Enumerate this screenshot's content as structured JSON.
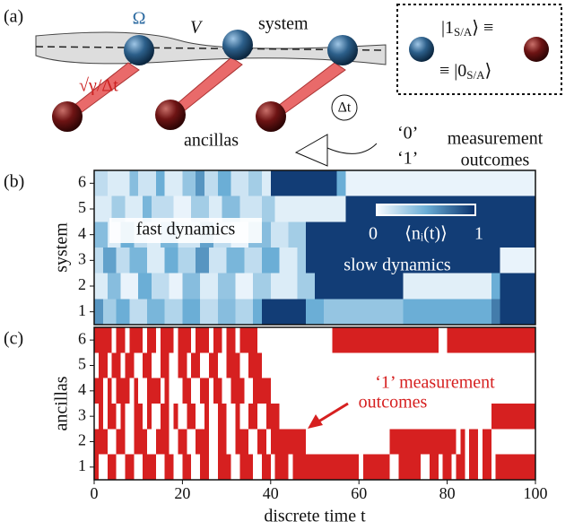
{
  "panel_a": {
    "label": "(a)",
    "omega": "Ω",
    "coupling": "V",
    "system": "system",
    "ancillas": "ancillas",
    "rate": "√γ/Δt",
    "dt": "Δt",
    "outcome_zero": "‘0’",
    "outcome_one": "‘1’",
    "measurement": "measurement",
    "outcomes": "outcomes",
    "ket_one": [
      "|1",
      "S/A",
      "⟩ ≡"
    ],
    "ket_zero": [
      "≡ |0",
      "S/A",
      "⟩"
    ]
  },
  "chart_data": [
    {
      "type": "heatmap",
      "panel_label": "(b)",
      "ylabel": "system",
      "xlim": [
        0,
        100
      ],
      "ylim": [
        0.5,
        6.5
      ],
      "yticks": [
        1,
        2,
        3,
        4,
        5,
        6
      ],
      "colormap": [
        "#f7fbff",
        "#6baed6",
        "#08306b"
      ],
      "colorbar": {
        "label": "⟨nᵢ(t)⟩",
        "ticks": [
          0,
          1
        ]
      },
      "annotations": [
        "fast dynamics",
        "slow dynamics"
      ],
      "rows": [
        [
          [
            0,
            2,
            0.6
          ],
          [
            2,
            5,
            0.3
          ],
          [
            5,
            8,
            0.5
          ],
          [
            8,
            12,
            0.2
          ],
          [
            12,
            16,
            0.45
          ],
          [
            16,
            20,
            0.25
          ],
          [
            20,
            24,
            0.5
          ],
          [
            24,
            28,
            0.2
          ],
          [
            28,
            32,
            0.4
          ],
          [
            32,
            36,
            0.25
          ],
          [
            36,
            38,
            0.5
          ],
          [
            38,
            48,
            0.95
          ],
          [
            48,
            52,
            0.5
          ],
          [
            52,
            70,
            0.35
          ],
          [
            70,
            90,
            0.5
          ],
          [
            90,
            92,
            0.7
          ],
          [
            92,
            100,
            0.95
          ]
        ],
        [
          [
            0,
            3,
            0.1
          ],
          [
            3,
            6,
            0.4
          ],
          [
            6,
            10,
            0.05
          ],
          [
            10,
            13,
            0.5
          ],
          [
            13,
            17,
            0.2
          ],
          [
            17,
            20,
            0.05
          ],
          [
            20,
            24,
            0.4
          ],
          [
            24,
            28,
            0.1
          ],
          [
            28,
            32,
            0.35
          ],
          [
            32,
            36,
            0.05
          ],
          [
            36,
            40,
            0.3
          ],
          [
            40,
            46,
            0.1
          ],
          [
            46,
            50,
            0.3
          ],
          [
            50,
            70,
            0.95
          ],
          [
            70,
            90,
            0.08
          ],
          [
            90,
            92,
            0.5
          ],
          [
            92,
            100,
            0.95
          ]
        ],
        [
          [
            0,
            2,
            0.2
          ],
          [
            2,
            5,
            0.55
          ],
          [
            5,
            8,
            0.2
          ],
          [
            8,
            12,
            0.45
          ],
          [
            12,
            16,
            0.1
          ],
          [
            16,
            19,
            0.5
          ],
          [
            19,
            23,
            0.25
          ],
          [
            23,
            26,
            0.6
          ],
          [
            26,
            30,
            0.15
          ],
          [
            30,
            34,
            0.45
          ],
          [
            34,
            38,
            0.2
          ],
          [
            38,
            42,
            0.5
          ],
          [
            42,
            46,
            0.1
          ],
          [
            46,
            48,
            0.3
          ],
          [
            48,
            92,
            0.95
          ],
          [
            92,
            100,
            0.05
          ]
        ],
        [
          [
            0,
            3,
            0.4
          ],
          [
            3,
            6,
            0.1
          ],
          [
            6,
            9,
            0.5
          ],
          [
            9,
            12,
            0.2
          ],
          [
            12,
            15,
            0.1
          ],
          [
            15,
            19,
            0.45
          ],
          [
            19,
            24,
            0.15
          ],
          [
            24,
            27,
            0.55
          ],
          [
            27,
            31,
            0.2
          ],
          [
            31,
            35,
            0.05
          ],
          [
            35,
            40,
            0.4
          ],
          [
            40,
            44,
            0.15
          ],
          [
            44,
            48,
            0.3
          ],
          [
            48,
            100,
            0.95
          ]
        ],
        [
          [
            0,
            4,
            0.1
          ],
          [
            4,
            7,
            0.3
          ],
          [
            7,
            11,
            0.1
          ],
          [
            11,
            13,
            0.45
          ],
          [
            13,
            18,
            0.2
          ],
          [
            18,
            22,
            0.05
          ],
          [
            22,
            26,
            0.3
          ],
          [
            26,
            29,
            0.1
          ],
          [
            29,
            33,
            0.4
          ],
          [
            33,
            38,
            0.15
          ],
          [
            38,
            41,
            0.3
          ],
          [
            41,
            57,
            0.08
          ],
          [
            57,
            100,
            0.95
          ]
        ],
        [
          [
            0,
            3,
            0.2
          ],
          [
            3,
            8,
            0.1
          ],
          [
            8,
            10,
            0.4
          ],
          [
            10,
            14,
            0.15
          ],
          [
            14,
            16,
            0.5
          ],
          [
            16,
            20,
            0.1
          ],
          [
            20,
            23,
            0.35
          ],
          [
            23,
            25,
            0.6
          ],
          [
            25,
            28,
            0.2
          ],
          [
            28,
            31,
            0.5
          ],
          [
            31,
            35,
            0.15
          ],
          [
            35,
            38,
            0.3
          ],
          [
            38,
            40,
            0.1
          ],
          [
            40,
            55,
            0.95
          ],
          [
            55,
            57,
            0.5
          ],
          [
            57,
            100,
            0.05
          ]
        ]
      ]
    },
    {
      "type": "raster",
      "panel_label": "(c)",
      "ylabel": "ancillas",
      "xlabel": "discrete time t",
      "xlim": [
        0,
        100
      ],
      "xticks": [
        0,
        20,
        40,
        60,
        80,
        100
      ],
      "ylim": [
        0.5,
        6.5
      ],
      "yticks": [
        1,
        2,
        3,
        4,
        5,
        6
      ],
      "color": "#d62020",
      "annotation": [
        "‘1’ measurement",
        "outcomes"
      ],
      "rows": [
        [
          [
            0,
            1
          ],
          [
            3,
            5
          ],
          [
            7,
            9
          ],
          [
            11,
            14
          ],
          [
            16,
            18
          ],
          [
            20,
            22
          ],
          [
            24,
            26
          ],
          [
            28,
            31
          ],
          [
            33,
            36
          ],
          [
            38,
            40
          ],
          [
            41,
            44
          ],
          [
            45,
            60
          ],
          [
            61,
            67
          ],
          [
            69,
            74
          ],
          [
            76,
            78
          ],
          [
            79,
            81
          ],
          [
            82,
            84
          ],
          [
            85,
            87
          ],
          [
            88,
            90
          ],
          [
            91,
            100
          ]
        ],
        [
          [
            0,
            3
          ],
          [
            5,
            7
          ],
          [
            9,
            12
          ],
          [
            14,
            17
          ],
          [
            19,
            21
          ],
          [
            23,
            26
          ],
          [
            28,
            30
          ],
          [
            32,
            35
          ],
          [
            37,
            39
          ],
          [
            40,
            48
          ],
          [
            67,
            82
          ],
          [
            83,
            84
          ],
          [
            85,
            87
          ],
          [
            88,
            90
          ]
        ],
        [
          [
            1,
            2
          ],
          [
            3,
            5
          ],
          [
            6,
            7
          ],
          [
            9,
            11
          ],
          [
            12,
            13
          ],
          [
            15,
            17
          ],
          [
            18,
            19
          ],
          [
            21,
            23
          ],
          [
            25,
            26
          ],
          [
            28,
            30
          ],
          [
            32,
            33
          ],
          [
            35,
            37
          ],
          [
            39,
            42
          ],
          [
            90,
            100
          ]
        ],
        [
          [
            0,
            2
          ],
          [
            3,
            4
          ],
          [
            5,
            8
          ],
          [
            9,
            10
          ],
          [
            12,
            15
          ],
          [
            16,
            17
          ],
          [
            20,
            22
          ],
          [
            24,
            26
          ],
          [
            27,
            29
          ],
          [
            31,
            34
          ],
          [
            36,
            40
          ]
        ],
        [
          [
            1,
            3
          ],
          [
            4,
            6
          ],
          [
            7,
            9
          ],
          [
            11,
            13
          ],
          [
            15,
            17
          ],
          [
            19,
            21
          ],
          [
            22,
            24
          ],
          [
            26,
            28
          ],
          [
            30,
            33
          ],
          [
            35,
            38
          ]
        ],
        [
          [
            0,
            4
          ],
          [
            5,
            7
          ],
          [
            8,
            11
          ],
          [
            12,
            14
          ],
          [
            15,
            18
          ],
          [
            19,
            22
          ],
          [
            23,
            26
          ],
          [
            27,
            29
          ],
          [
            30,
            32
          ],
          [
            33,
            37
          ],
          [
            54,
            78
          ],
          [
            80,
            100
          ]
        ]
      ]
    }
  ]
}
